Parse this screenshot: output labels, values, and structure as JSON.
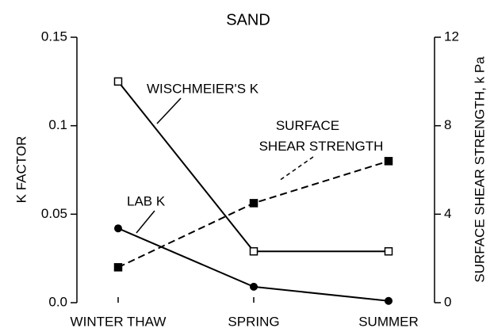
{
  "chart_data": {
    "type": "line",
    "title": "SAND",
    "categories": [
      "WINTER THAW",
      "SPRING",
      "SUMMER"
    ],
    "ylabel": "K FACTOR",
    "y2label": "SURFACE SHEAR STRENGTH, k Pa",
    "ylim": [
      0,
      0.15
    ],
    "yticks": [
      {
        "value": 0,
        "label": "0.0"
      },
      0.05,
      0.1,
      0.15
    ],
    "y2lim": [
      0,
      12
    ],
    "y2ticks": [
      0,
      4,
      8,
      12
    ],
    "series": [
      {
        "name": "WISCHMEIER'S K",
        "color": "#000",
        "marker": "open-square",
        "dash": false,
        "values": [
          0.125,
          0.029,
          0.029
        ]
      },
      {
        "name": "LAB K",
        "color": "#000",
        "marker": "circle",
        "dash": false,
        "values": [
          0.042,
          0.009,
          0.001
        ]
      },
      {
        "name": "SURFACE SHEAR STRENGTH",
        "color": "#000",
        "marker": "square",
        "dash": true,
        "axis": "y2",
        "values": [
          1.6,
          4.5,
          6.4
        ]
      }
    ]
  }
}
